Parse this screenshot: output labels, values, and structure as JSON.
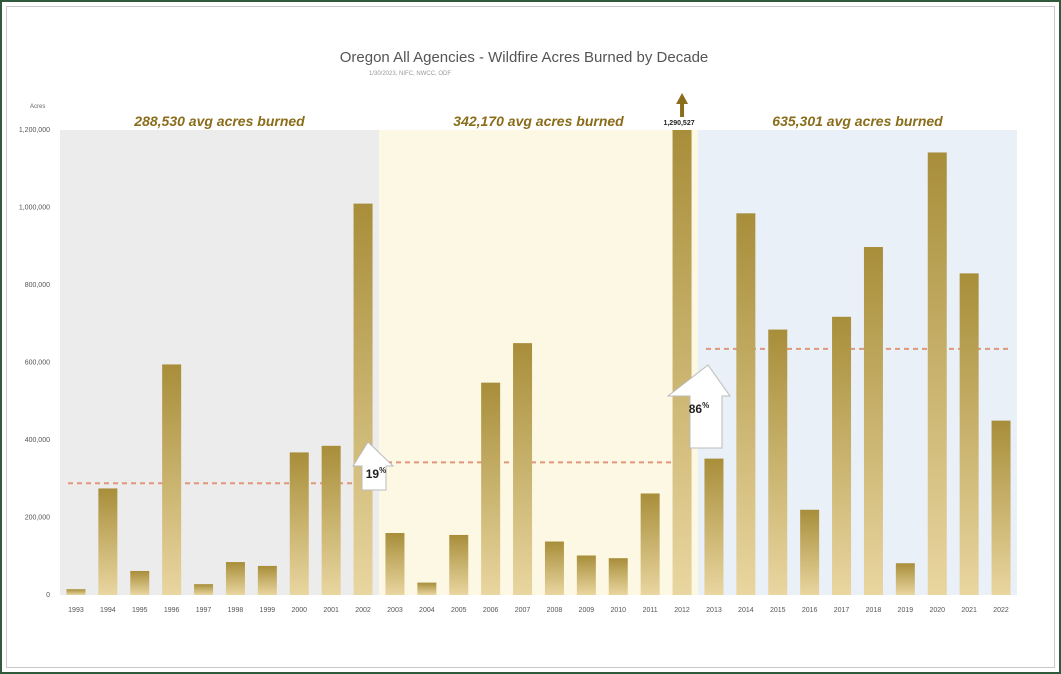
{
  "chart_data": {
    "type": "bar",
    "title": "Oregon All Agencies - Wildfire Acres Burned by Decade",
    "subtitle": "1/30/2023, NIFC, NWCC, ODF",
    "ylabel": "Acres",
    "ylim": [
      0,
      1200000
    ],
    "yticks": [
      0,
      200000,
      400000,
      600000,
      800000,
      1000000,
      1200000
    ],
    "ytick_labels": [
      "0",
      "200,000",
      "400,000",
      "600,000",
      "800,000",
      "1,000,000",
      "1,200,000"
    ],
    "categories": [
      "1993",
      "1994",
      "1995",
      "1996",
      "1997",
      "1998",
      "1999",
      "2000",
      "2001",
      "2002",
      "2003",
      "2004",
      "2005",
      "2006",
      "2007",
      "2008",
      "2009",
      "2010",
      "2011",
      "2012",
      "2013",
      "2014",
      "2015",
      "2016",
      "2017",
      "2018",
      "2019",
      "2020",
      "2021",
      "2022"
    ],
    "values": [
      15000,
      275000,
      62000,
      595000,
      28000,
      85000,
      75000,
      368000,
      385000,
      1010000,
      160000,
      32000,
      155000,
      548000,
      650000,
      138000,
      102000,
      95000,
      262000,
      1290527,
      352000,
      985000,
      685000,
      220000,
      718000,
      898000,
      82000,
      1142000,
      830000,
      450000
    ],
    "grid": false,
    "clipped_bar": {
      "category": "2012",
      "label": "1,290,527"
    },
    "periods": [
      {
        "label": "288,530 avg acres burned",
        "start": "1993",
        "end": "2002",
        "avg": 288530,
        "color": "#ececec"
      },
      {
        "label": "342,170 avg acres burned",
        "start": "2003",
        "end": "2012",
        "avg": 342170,
        "color": "#fdf8e4"
      },
      {
        "label": "635,301 avg acres burned",
        "start": "2013",
        "end": "2022",
        "avg": 635301,
        "color": "#eaf0f8"
      }
    ],
    "changes": [
      {
        "label": "19",
        "suffix": "%"
      },
      {
        "label": "86",
        "suffix": "%"
      }
    ],
    "colors": {
      "bar_top": "#a88e3a",
      "bar_bottom": "#e9d6a0",
      "avg_line": "#e0967a",
      "period_text": "#8a6d1a",
      "frame": "#2f5a3c"
    }
  }
}
